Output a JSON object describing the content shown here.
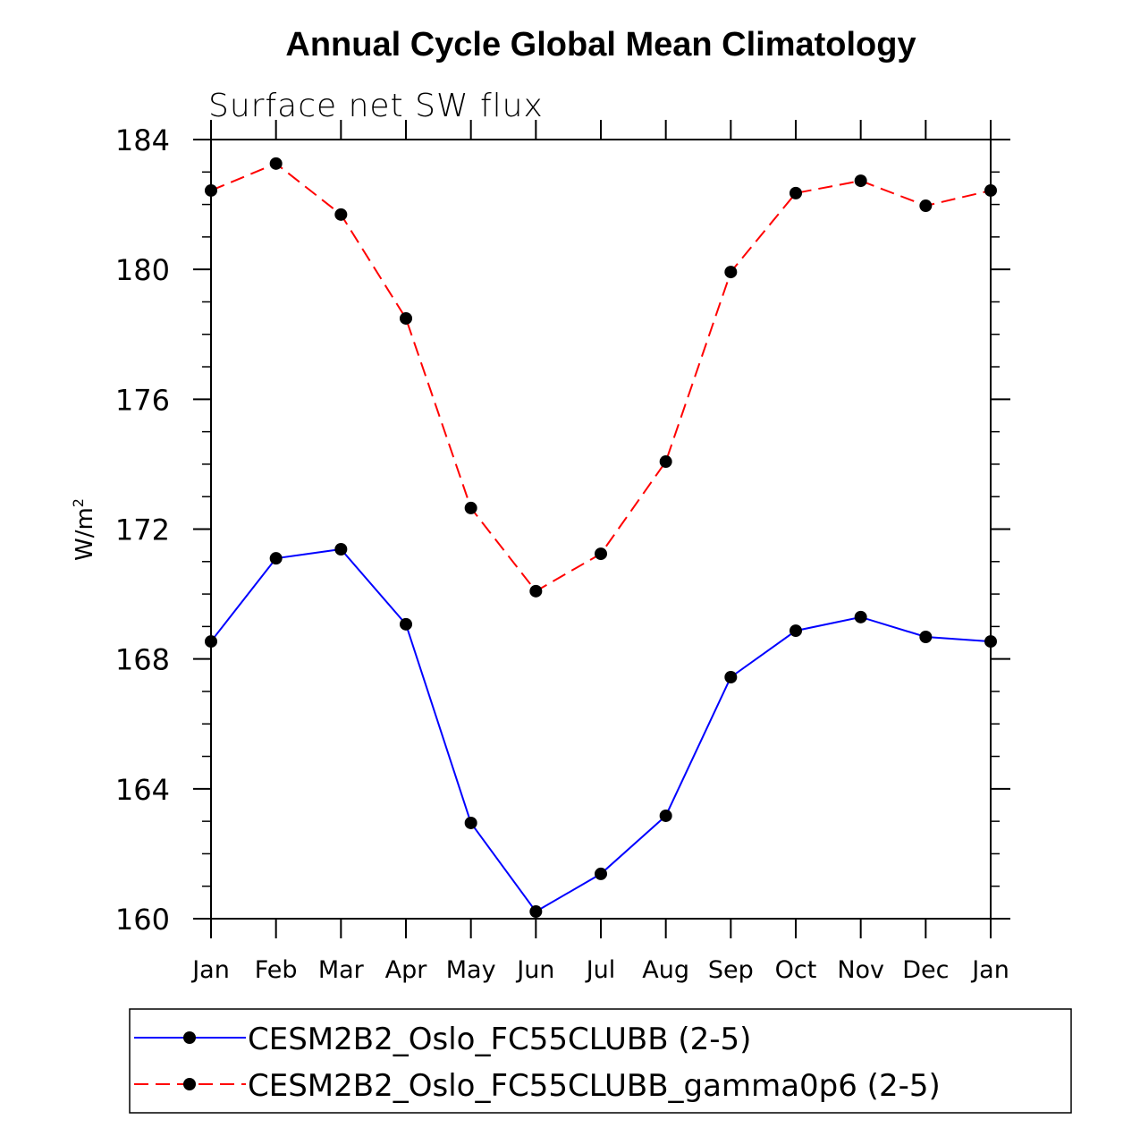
{
  "chart_data": {
    "type": "line",
    "title": "Annual Cycle Global Mean Climatology",
    "subtitle": "Surface net SW flux",
    "xlabel": "",
    "ylabel": "W/m",
    "ylabel_superscript": "2",
    "categories": [
      "Jan",
      "Feb",
      "Mar",
      "Apr",
      "May",
      "Jun",
      "Jul",
      "Aug",
      "Sep",
      "Oct",
      "Nov",
      "Dec",
      "Jan"
    ],
    "ylim": [
      160,
      184
    ],
    "yticks": [
      160,
      164,
      168,
      172,
      176,
      180,
      184
    ],
    "grid": false,
    "legend_placement": "bottom",
    "series": [
      {
        "name": "CESM2B2_Oslo_FC55CLUBB (2-5)",
        "color": "#0000ff",
        "dash": "solid",
        "values": [
          168.54,
          171.1,
          171.38,
          169.07,
          162.95,
          160.22,
          161.38,
          163.17,
          167.44,
          168.87,
          169.29,
          168.68,
          168.54
        ]
      },
      {
        "name": "CESM2B2_Oslo_FC55CLUBB_gamma0p6 (2-5)",
        "color": "#ff0000",
        "dash": "dashed",
        "values": [
          182.43,
          183.26,
          181.69,
          178.49,
          172.65,
          170.09,
          171.24,
          174.08,
          179.92,
          182.35,
          182.73,
          181.96,
          182.43
        ]
      }
    ]
  }
}
